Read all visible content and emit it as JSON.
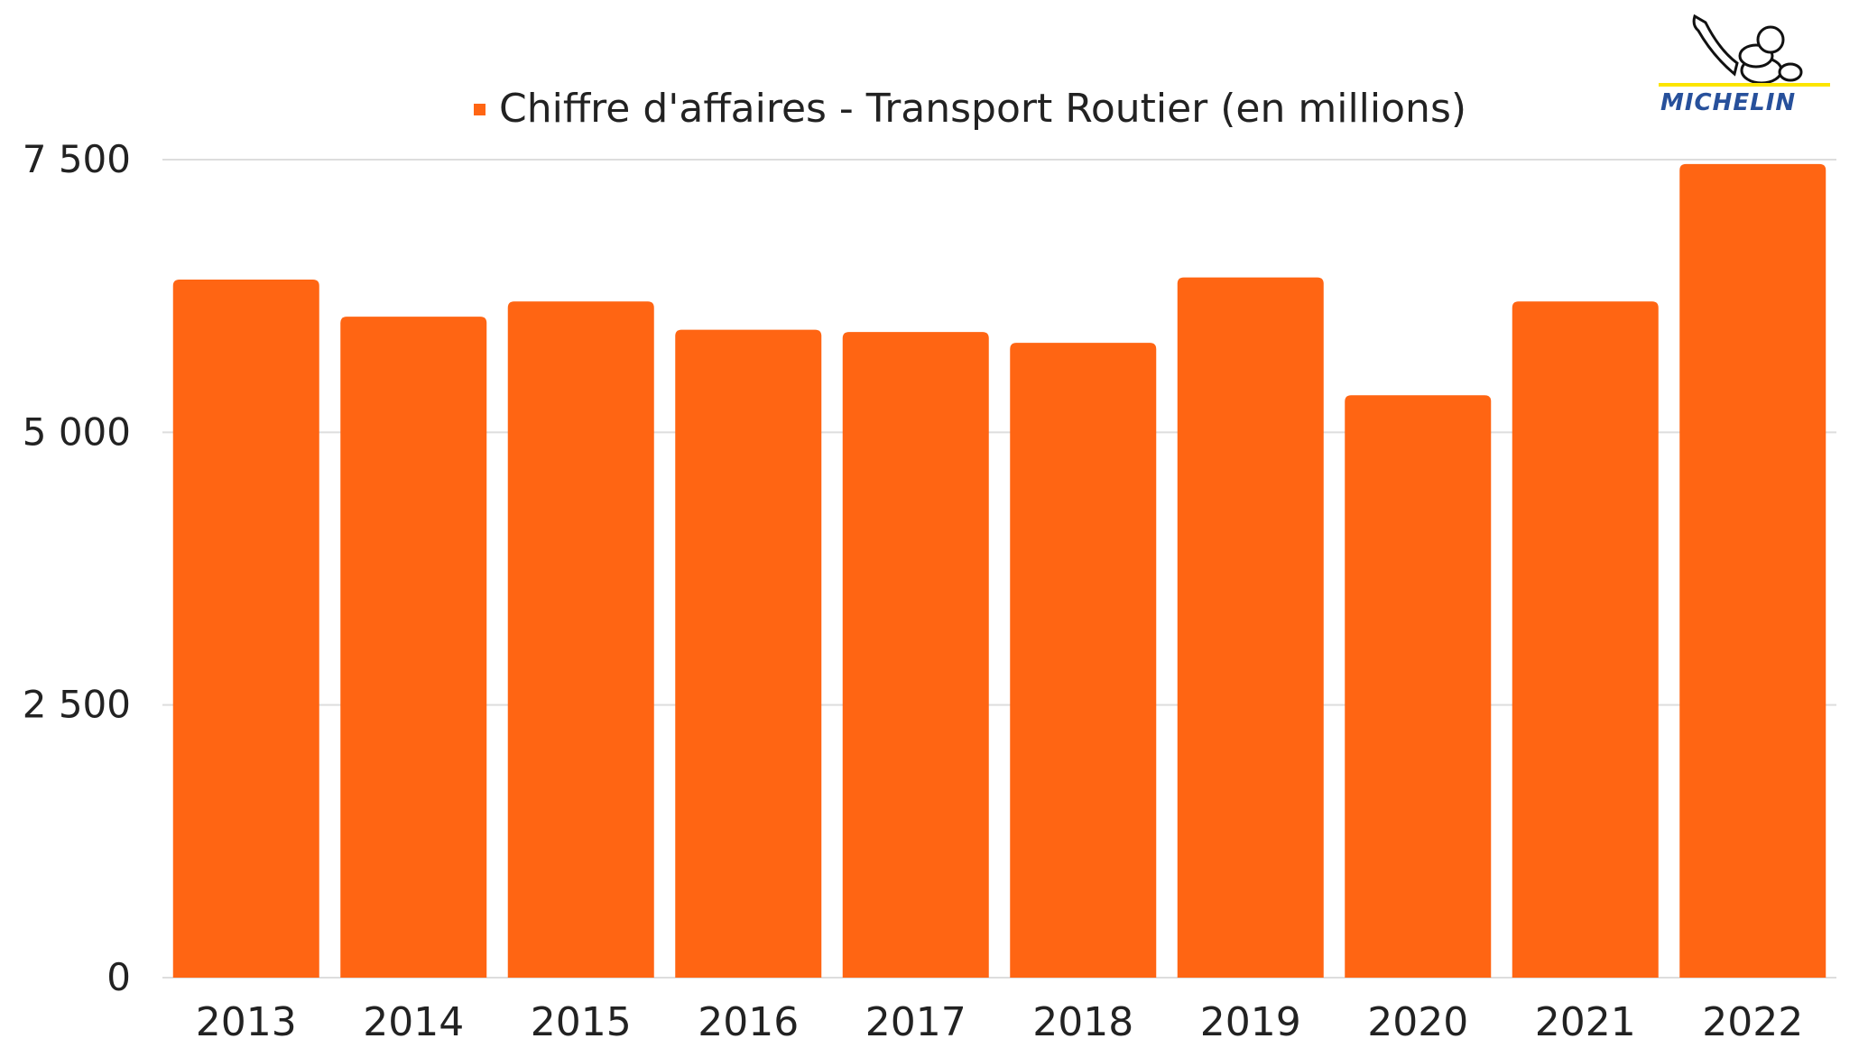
{
  "brand": {
    "logo_text": "MICHELIN",
    "logo_color": "#27509b",
    "logo_accent": "#fce500"
  },
  "chart_data": {
    "type": "bar",
    "title": "",
    "xlabel": "",
    "ylabel": "",
    "categories": [
      "2013",
      "2014",
      "2015",
      "2016",
      "2017",
      "2018",
      "2019",
      "2020",
      "2021",
      "2022"
    ],
    "series": [
      {
        "name": "Chiffre d'affaires - Transport Routier (en millions)",
        "color": "#ff6513",
        "values": [
          6400,
          6060,
          6200,
          5940,
          5920,
          5820,
          6420,
          5340,
          6200,
          7460
        ]
      }
    ],
    "ylim": [
      0,
      7500
    ],
    "yticks": [
      0,
      2500,
      5000,
      7500
    ],
    "ytick_labels": [
      "0",
      "2 500",
      "5 000",
      "7 500"
    ],
    "grid": true,
    "legend_position": "top-center"
  }
}
